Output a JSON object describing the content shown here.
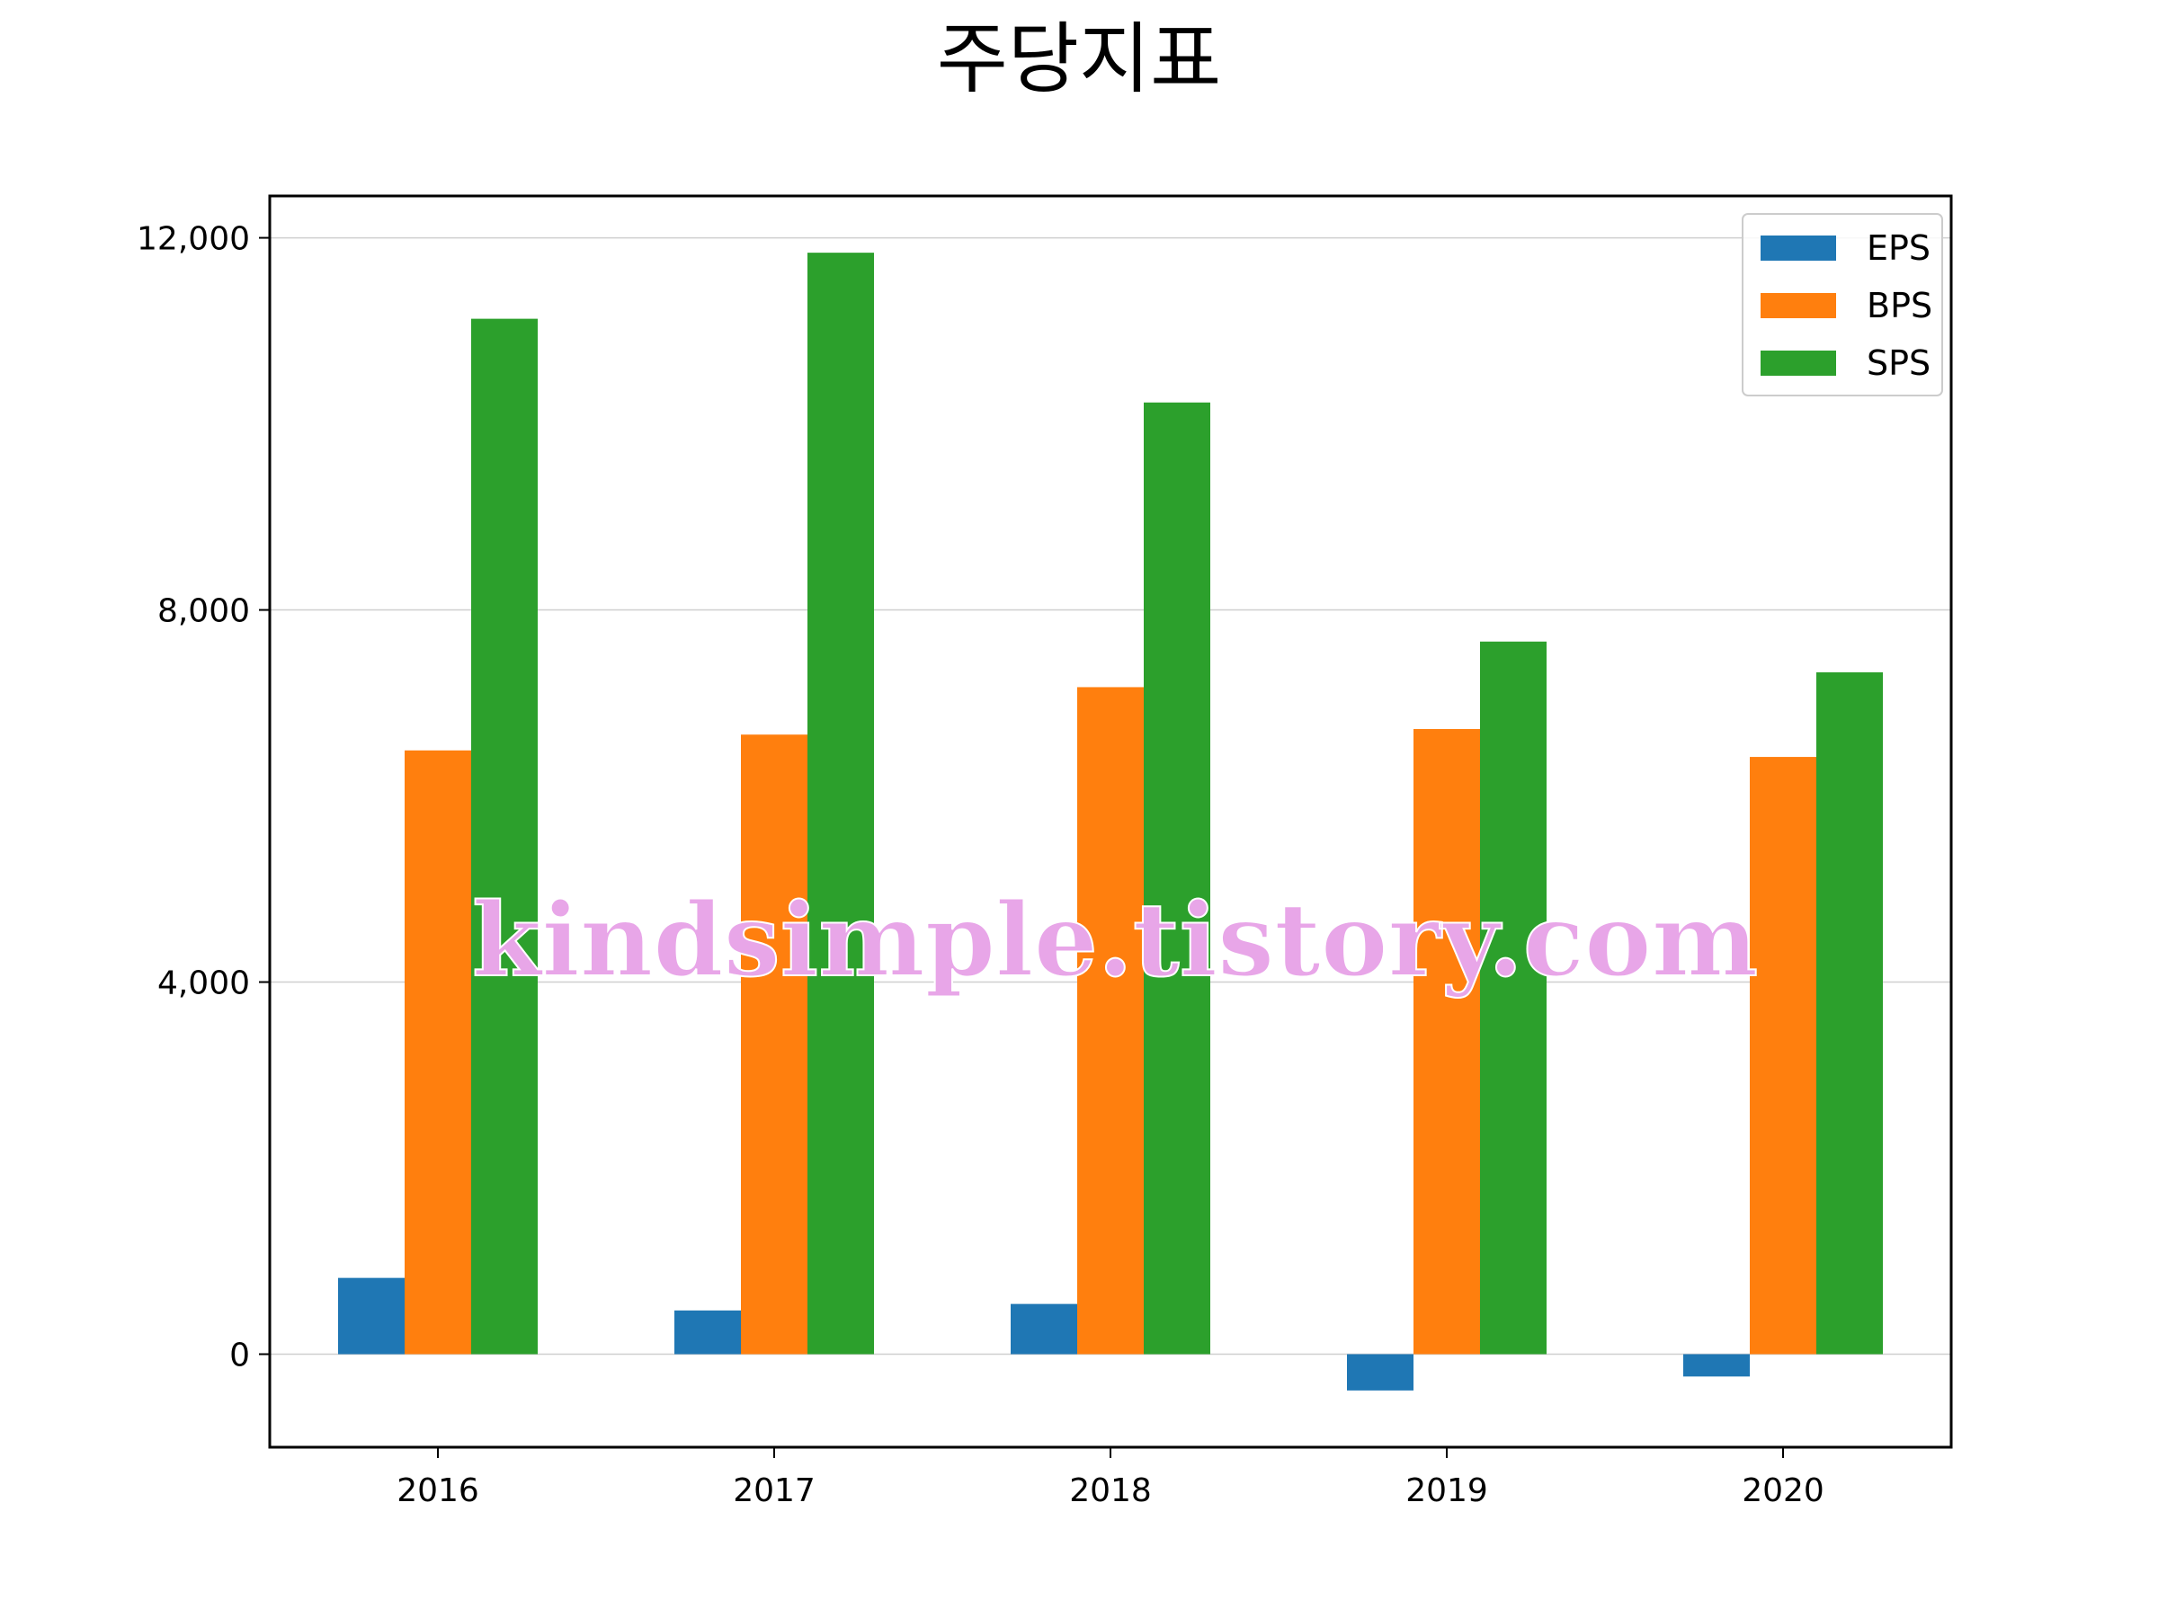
{
  "watermark": "kindsimple.tistory.com",
  "chart_data": {
    "type": "bar",
    "title": "주당지표",
    "categories": [
      "2016",
      "2017",
      "2018",
      "2019",
      "2020"
    ],
    "series": [
      {
        "name": "EPS",
        "color": "#1f77b4",
        "values": [
          820,
          470,
          540,
          -390,
          -240
        ]
      },
      {
        "name": "BPS",
        "color": "#ff7f0e",
        "values": [
          6490,
          6660,
          7170,
          6720,
          6420
        ]
      },
      {
        "name": "SPS",
        "color": "#2ca02c",
        "values": [
          11130,
          11840,
          10230,
          7660,
          7330
        ]
      }
    ],
    "yticks": [
      0,
      4000,
      8000,
      12000
    ],
    "ytick_labels": [
      "0",
      "4,000",
      "8,000",
      "12,000"
    ],
    "ylim": [
      -1000,
      12450
    ],
    "grid": true,
    "legend_position": "top-right"
  }
}
